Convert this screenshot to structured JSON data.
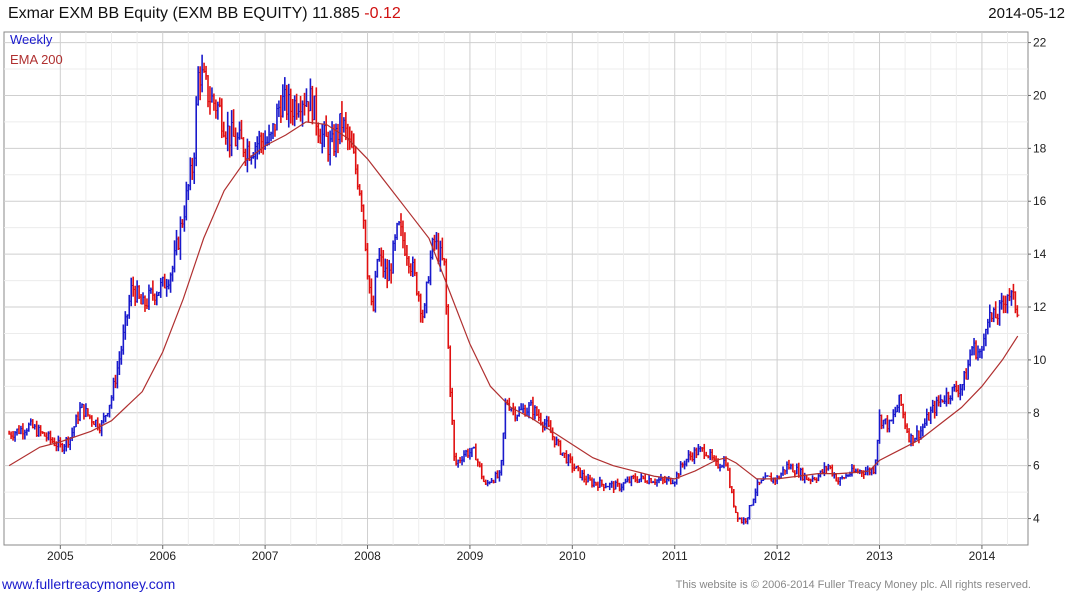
{
  "header": {
    "title_text": "Exmar EXM BB Equity (EXM BB EQUITY) 11.885",
    "change": "-0.12",
    "date": "2014-05-12"
  },
  "footer": {
    "website": "www.fullertreacymoney.com",
    "copyright": "This website is © 2006-2014 Fuller Treacy Money plc. All rights reserved."
  },
  "colors": {
    "up": "#1a1acc",
    "down": "#e01010",
    "ema": "#b03030",
    "grid": "#d8d8d8",
    "title_change": "#d01010"
  },
  "chart_data": {
    "type": "line",
    "title": "Exmar EXM BB Equity (EXM BB EQUITY) 11.885 -0.12",
    "xlabel": "",
    "ylabel": "",
    "xlim": [
      2004.45,
      2014.45
    ],
    "ylim": [
      3,
      22.4
    ],
    "x_ticks": [
      "2005",
      "2006",
      "2007",
      "2008",
      "2009",
      "2010",
      "2011",
      "2012",
      "2013",
      "2014"
    ],
    "y_ticks": [
      4,
      6,
      8,
      10,
      12,
      14,
      16,
      18,
      20,
      22
    ],
    "grid": true,
    "legend": [
      "Weekly",
      "EMA 200"
    ],
    "legend_position": "top-left",
    "series": [
      {
        "name": "Weekly",
        "x": [
          2004.5,
          2004.7,
          2004.9,
          2005.0,
          2005.1,
          2005.2,
          2005.3,
          2005.4,
          2005.5,
          2005.6,
          2005.7,
          2005.8,
          2005.9,
          2006.0,
          2006.1,
          2006.2,
          2006.25,
          2006.3,
          2006.35,
          2006.45,
          2006.55,
          2006.65,
          2006.75,
          2006.85,
          2006.95,
          2007.05,
          2007.15,
          2007.25,
          2007.35,
          2007.45,
          2007.55,
          2007.65,
          2007.75,
          2007.85,
          2007.9,
          2007.95,
          2008.0,
          2008.05,
          2008.1,
          2008.2,
          2008.3,
          2008.4,
          2008.5,
          2008.55,
          2008.6,
          2008.65,
          2008.7,
          2008.75,
          2008.8,
          2008.85,
          2008.95,
          2009.05,
          2009.15,
          2009.2,
          2009.3,
          2009.35,
          2009.45,
          2009.6,
          2009.75,
          2009.9,
          2010.0,
          2010.15,
          2010.3,
          2010.45,
          2010.6,
          2010.75,
          2010.9,
          2011.0,
          2011.1,
          2011.2,
          2011.3,
          2011.4,
          2011.5,
          2011.55,
          2011.6,
          2011.65,
          2011.7,
          2011.8,
          2011.9,
          2012.0,
          2012.1,
          2012.2,
          2012.3,
          2012.4,
          2012.5,
          2012.6,
          2012.7,
          2012.8,
          2012.9,
          2012.95,
          2013.0,
          2013.1,
          2013.2,
          2013.25,
          2013.3,
          2013.4,
          2013.5,
          2013.6,
          2013.7,
          2013.8,
          2013.85,
          2013.9,
          2014.0,
          2014.05,
          2014.1,
          2014.15,
          2014.2,
          2014.25,
          2014.3,
          2014.35
        ],
        "values": [
          7.2,
          7.5,
          7.0,
          6.7,
          7.1,
          8.2,
          7.8,
          7.5,
          8.6,
          10.5,
          12.8,
          12.0,
          12.5,
          12.8,
          13.5,
          15.5,
          16.5,
          17.5,
          21.0,
          20.0,
          19.5,
          18.5,
          18.2,
          18.0,
          18.3,
          18.2,
          19.8,
          19.5,
          20.0,
          19.8,
          18.5,
          18.0,
          19.0,
          17.8,
          17.0,
          16.0,
          13.5,
          11.5,
          14.0,
          13.0,
          15.0,
          14.0,
          12.5,
          11.5,
          13.5,
          14.5,
          14.0,
          13.5,
          9.5,
          6.0,
          6.5,
          6.5,
          5.2,
          5.5,
          5.6,
          8.5,
          8.0,
          8.2,
          7.5,
          6.5,
          6.0,
          5.4,
          5.3,
          5.2,
          5.5,
          5.5,
          5.4,
          5.5,
          6.2,
          6.5,
          6.6,
          6.0,
          6.2,
          5.0,
          4.2,
          3.9,
          4.0,
          5.2,
          5.5,
          5.5,
          6.0,
          5.8,
          5.5,
          5.6,
          6.0,
          5.4,
          5.7,
          5.8,
          5.8,
          5.9,
          7.8,
          7.5,
          8.5,
          7.6,
          7.0,
          7.3,
          8.0,
          8.5,
          8.8,
          9.0,
          9.5,
          10.5,
          10.2,
          11.8,
          11.5,
          11.7,
          12.0,
          12.6,
          12.3,
          11.9
        ]
      },
      {
        "name": "EMA 200",
        "x": [
          2004.5,
          2004.8,
          2005.0,
          2005.3,
          2005.5,
          2005.8,
          2006.0,
          2006.2,
          2006.4,
          2006.6,
          2006.8,
          2007.0,
          2007.2,
          2007.4,
          2007.6,
          2007.8,
          2008.0,
          2008.2,
          2008.4,
          2008.6,
          2008.8,
          2009.0,
          2009.2,
          2009.4,
          2009.6,
          2009.8,
          2010.0,
          2010.2,
          2010.4,
          2010.6,
          2010.8,
          2011.0,
          2011.2,
          2011.4,
          2011.5,
          2011.6,
          2011.7,
          2011.8,
          2012.0,
          2012.2,
          2012.4,
          2012.6,
          2012.8,
          2012.9,
          2013.0,
          2013.2,
          2013.4,
          2013.6,
          2013.8,
          2014.0,
          2014.2,
          2014.35
        ],
        "values": [
          6.0,
          6.7,
          6.9,
          7.3,
          7.7,
          8.8,
          10.3,
          12.3,
          14.6,
          16.4,
          17.5,
          18.1,
          18.5,
          19.0,
          18.9,
          18.4,
          17.6,
          16.6,
          15.6,
          14.6,
          12.6,
          10.6,
          9.0,
          8.2,
          7.8,
          7.3,
          6.8,
          6.3,
          6.0,
          5.8,
          5.6,
          5.5,
          5.8,
          6.2,
          6.3,
          6.1,
          5.8,
          5.5,
          5.5,
          5.6,
          5.7,
          5.7,
          5.75,
          5.8,
          6.2,
          6.6,
          7.0,
          7.6,
          8.2,
          9.0,
          10.0,
          10.9
        ]
      }
    ]
  }
}
